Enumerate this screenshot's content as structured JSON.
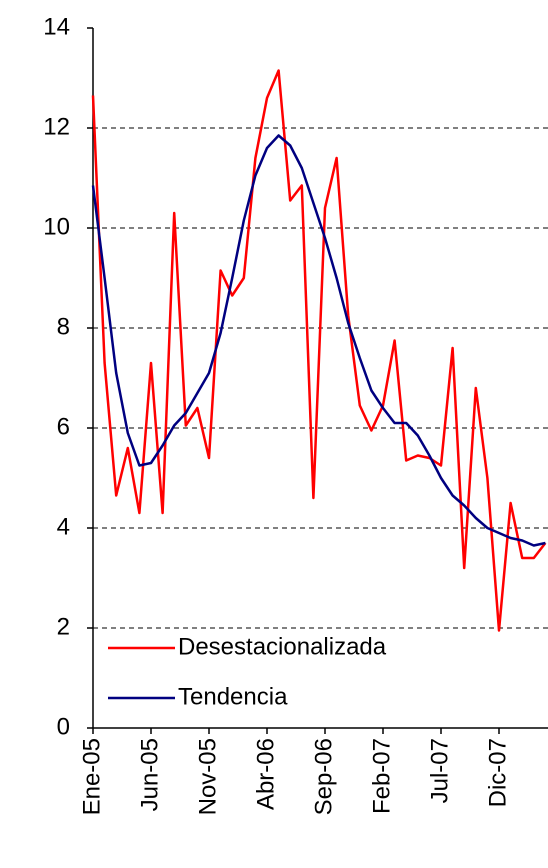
{
  "chart_data": {
    "type": "line",
    "categories": [
      "Ene-05",
      null,
      null,
      null,
      null,
      "Jun-05",
      null,
      null,
      null,
      null,
      "Nov-05",
      null,
      null,
      null,
      null,
      "Abr-06",
      null,
      null,
      null,
      null,
      "Sep-06",
      null,
      null,
      null,
      null,
      "Feb-07",
      null,
      null,
      null,
      null,
      "Jul-07",
      null,
      null,
      null,
      null,
      "Dic-07",
      null,
      null,
      null,
      null
    ],
    "series": [
      {
        "name": "Desestacionalizada",
        "color": "#ff0000",
        "values": [
          12.65,
          7.3,
          4.65,
          5.6,
          4.3,
          7.3,
          4.3,
          10.3,
          6.05,
          6.4,
          5.4,
          9.15,
          8.65,
          9.0,
          11.4,
          12.6,
          13.15,
          10.55,
          10.85,
          4.6,
          10.4,
          11.4,
          8.25,
          6.45,
          5.95,
          6.45,
          7.75,
          5.35,
          5.45,
          5.4,
          5.25,
          7.6,
          3.2,
          6.8,
          5.0,
          1.95,
          4.5,
          3.4,
          3.4,
          3.7
        ]
      },
      {
        "name": "Tendencia",
        "color": "#000080",
        "values": [
          10.85,
          9.0,
          7.1,
          5.9,
          5.25,
          5.3,
          5.65,
          6.05,
          6.3,
          6.7,
          7.1,
          7.9,
          9.0,
          10.15,
          11.05,
          11.6,
          11.85,
          11.65,
          11.2,
          10.5,
          9.8,
          9.0,
          8.1,
          7.4,
          6.75,
          6.4,
          6.1,
          6.1,
          5.85,
          5.45,
          5.0,
          4.65,
          4.45,
          4.2,
          4.0,
          3.9,
          3.8,
          3.75,
          3.65,
          3.7
        ]
      }
    ],
    "ylim": [
      0,
      14
    ],
    "yticks": [
      0,
      2,
      4,
      6,
      8,
      10,
      12,
      14
    ],
    "grid": true,
    "legend": "lower left"
  }
}
